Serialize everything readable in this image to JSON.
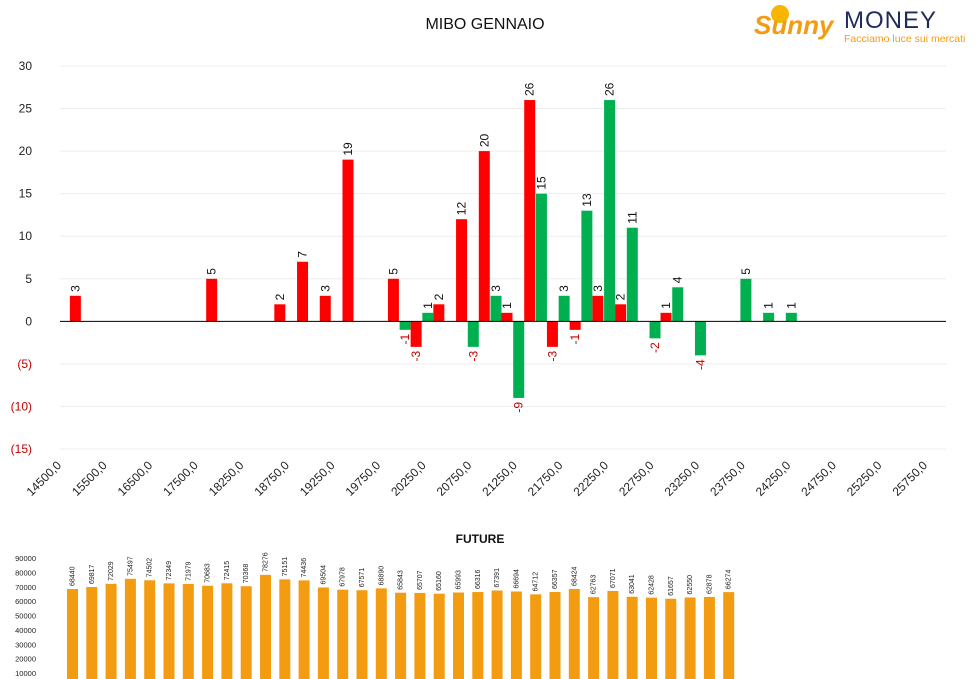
{
  "chart_data": [
    {
      "type": "bar",
      "title": "MIBO GENNAIO",
      "ylim": [
        -15,
        30
      ],
      "y_ticks": [
        30,
        25,
        20,
        15,
        10,
        5,
        0,
        -5,
        -10,
        -15
      ],
      "y_tick_labels": [
        "30",
        "25",
        "20",
        "15",
        "10",
        "5",
        "0",
        "(5)",
        "(10)",
        "(15)"
      ],
      "x_tick_labels": [
        "14500,0",
        "15500,0",
        "16500,0",
        "17500,0",
        "18250,0",
        "18750,0",
        "19250,0",
        "19750,0",
        "20250,0",
        "20750,0",
        "21250,0",
        "21750,0",
        "22250,0",
        "22750,0",
        "23250,0",
        "23750,0",
        "24250,0",
        "24750,0",
        "25250,0",
        "25750,0"
      ],
      "colors": {
        "red": "#ff0000",
        "green": "#00b050",
        "negative_label": "#c00000"
      },
      "grid": true,
      "bars": [
        {
          "slot": 0,
          "series": "red",
          "value": 3
        },
        {
          "slot": 6,
          "series": "red",
          "value": 5
        },
        {
          "slot": 9,
          "series": "red",
          "value": 2
        },
        {
          "slot": 10,
          "series": "red",
          "value": 7
        },
        {
          "slot": 11,
          "series": "red",
          "value": 3
        },
        {
          "slot": 12,
          "series": "red",
          "value": 19
        },
        {
          "slot": 14,
          "series": "red",
          "value": 5
        },
        {
          "slot": 15,
          "series": "green",
          "value": -1
        },
        {
          "slot": 15,
          "series": "red",
          "value": -3
        },
        {
          "slot": 16,
          "series": "red",
          "value": 2
        },
        {
          "slot": 16,
          "series": "green",
          "value": 1
        },
        {
          "slot": 17,
          "series": "red",
          "value": 12
        },
        {
          "slot": 18,
          "series": "red",
          "value": 20
        },
        {
          "slot": 18,
          "series": "green",
          "value": -3
        },
        {
          "slot": 19,
          "series": "red",
          "value": 1
        },
        {
          "slot": 19,
          "series": "green",
          "value": 3
        },
        {
          "slot": 20,
          "series": "red",
          "value": 26
        },
        {
          "slot": 20,
          "series": "green",
          "value": -9
        },
        {
          "slot": 21,
          "series": "red",
          "value": -3
        },
        {
          "slot": 21,
          "series": "green",
          "value": 15
        },
        {
          "slot": 22,
          "series": "red",
          "value": -1
        },
        {
          "slot": 22,
          "series": "green",
          "value": 3
        },
        {
          "slot": 23,
          "series": "red",
          "value": 3
        },
        {
          "slot": 23,
          "series": "green",
          "value": 13
        },
        {
          "slot": 24,
          "series": "red",
          "value": 2
        },
        {
          "slot": 24,
          "series": "green",
          "value": 26
        },
        {
          "slot": 25,
          "series": "green",
          "value": 11
        },
        {
          "slot": 26,
          "series": "green",
          "value": -2
        },
        {
          "slot": 26,
          "series": "red",
          "value": 1
        },
        {
          "slot": 27,
          "series": "green",
          "value": 4
        },
        {
          "slot": 28,
          "series": "green",
          "value": -4
        },
        {
          "slot": 30,
          "series": "green",
          "value": 5
        },
        {
          "slot": 31,
          "series": "green",
          "value": 1
        },
        {
          "slot": 32,
          "series": "green",
          "value": 1
        }
      ]
    },
    {
      "type": "bar",
      "title": "FUTURE",
      "ylim": [
        10000,
        90000
      ],
      "y_ticks": [
        90000,
        80000,
        70000,
        60000,
        50000,
        40000,
        30000,
        20000,
        10000
      ],
      "color": "#f39c12",
      "values": [
        68440,
        69817,
        72029,
        75497,
        74502,
        72349,
        71979,
        70683,
        72415,
        70368,
        78276,
        75151,
        74436,
        69504,
        67978,
        67571,
        68890,
        65843,
        65707,
        65160,
        65993,
        66316,
        67391,
        66694,
        64712,
        66357,
        68424,
        62763,
        67071,
        63041,
        62428,
        61657,
        62550,
        62878,
        66274
      ]
    }
  ],
  "logo": {
    "brand_word": "Sunny",
    "brand_money": "MONEY",
    "tagline": "Facciamo luce sui mercati"
  }
}
